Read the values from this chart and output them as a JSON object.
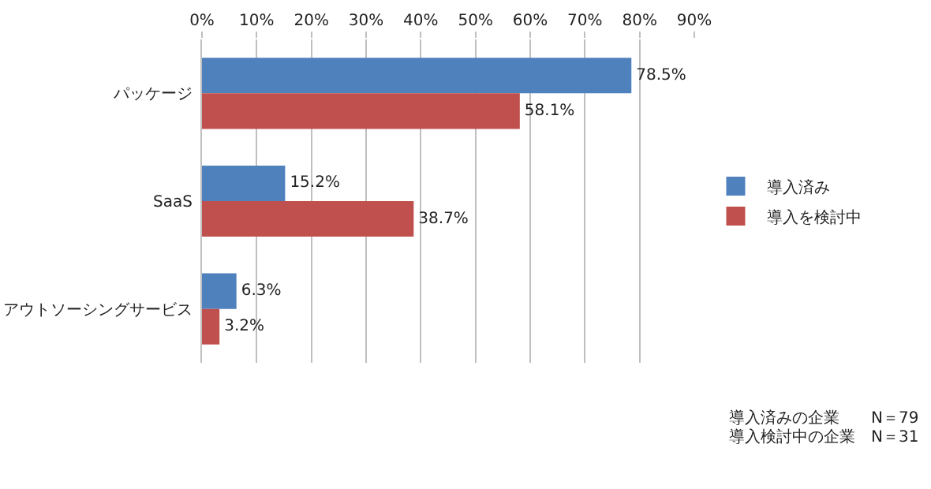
{
  "chart_data": {
    "type": "bar",
    "orientation": "horizontal",
    "categories": [
      "パッケージ",
      "SaaS",
      "アウトソーシングサービス"
    ],
    "series": [
      {
        "name": "導入済み",
        "color": "#4f81bd",
        "values": [
          78.5,
          15.2,
          6.3
        ],
        "value_labels": [
          "78.5%",
          "15.2%",
          "6.3%"
        ]
      },
      {
        "name": "導入を検討中",
        "color": "#c0504d",
        "values": [
          58.1,
          38.7,
          3.2
        ],
        "value_labels": [
          "58.1%",
          "38.7%",
          "3.2%"
        ]
      }
    ],
    "xlim": [
      0,
      90
    ],
    "xticks": [
      {
        "value": 0,
        "label": "0%"
      },
      {
        "value": 10,
        "label": "10%"
      },
      {
        "value": 20,
        "label": "20%"
      },
      {
        "value": 30,
        "label": "30%"
      },
      {
        "value": 40,
        "label": "40%"
      },
      {
        "value": 50,
        "label": "50%"
      },
      {
        "value": 60,
        "label": "60%"
      },
      {
        "value": 70,
        "label": "70%"
      },
      {
        "value": 80,
        "label": "80%"
      },
      {
        "value": 90,
        "label": "90%"
      }
    ],
    "grid": "x",
    "legend": "right",
    "annotations": [
      "導入済みの企業　　N＝79",
      "導入検討中の企業　N＝31"
    ]
  }
}
